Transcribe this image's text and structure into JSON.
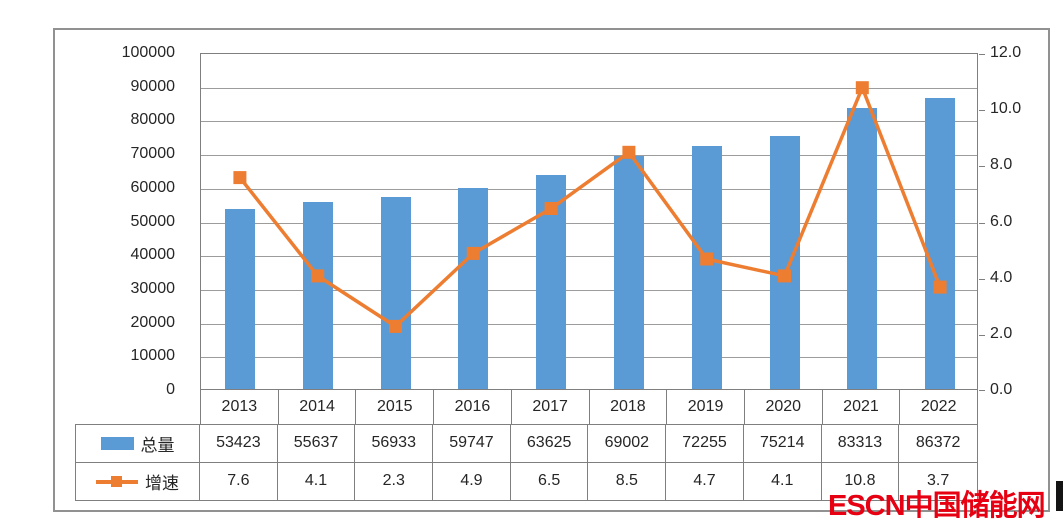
{
  "chart_data": {
    "type": "bar",
    "subtype": "combo-bar-line",
    "title": "",
    "categories": [
      "2013",
      "2014",
      "2015",
      "2016",
      "2017",
      "2018",
      "2019",
      "2020",
      "2021",
      "2022"
    ],
    "series": [
      {
        "name": "总量",
        "type": "bar",
        "axis": "left",
        "color": "#5B9BD5",
        "values": [
          53423,
          55637,
          56933,
          59747,
          63625,
          69002,
          72255,
          75214,
          83313,
          86372
        ]
      },
      {
        "name": "增速",
        "type": "line",
        "axis": "right",
        "color": "#ED7D31",
        "values": [
          7.6,
          4.1,
          2.3,
          4.9,
          6.5,
          8.5,
          4.7,
          4.1,
          10.8,
          3.7
        ]
      }
    ],
    "left_axis": {
      "min": 0,
      "max": 100000,
      "step": 10000,
      "tick_labels": [
        "100000",
        "90000",
        "80000",
        "70000",
        "60000",
        "50000",
        "40000",
        "30000",
        "20000",
        "10000",
        "0"
      ]
    },
    "right_axis": {
      "min": 0.0,
      "max": 12.0,
      "step": 2.0,
      "tick_labels": [
        "12.0",
        "10.0",
        "8.0",
        "6.0",
        "4.0",
        "2.0",
        "0.0"
      ]
    },
    "grid": true,
    "legend_position": "data-table-left",
    "data_table_shown": true
  },
  "watermark": {
    "text": "ESCN中国储能网",
    "color": "#E60012"
  },
  "colors": {
    "bar": "#5B9BD5",
    "line": "#ED7D31",
    "gridline": "#9C9C9C",
    "table_border": "#7F7F7F",
    "frame_border": "#919191",
    "text": "#262626",
    "watermark": "#E60012",
    "background": "#FFFFFF"
  }
}
